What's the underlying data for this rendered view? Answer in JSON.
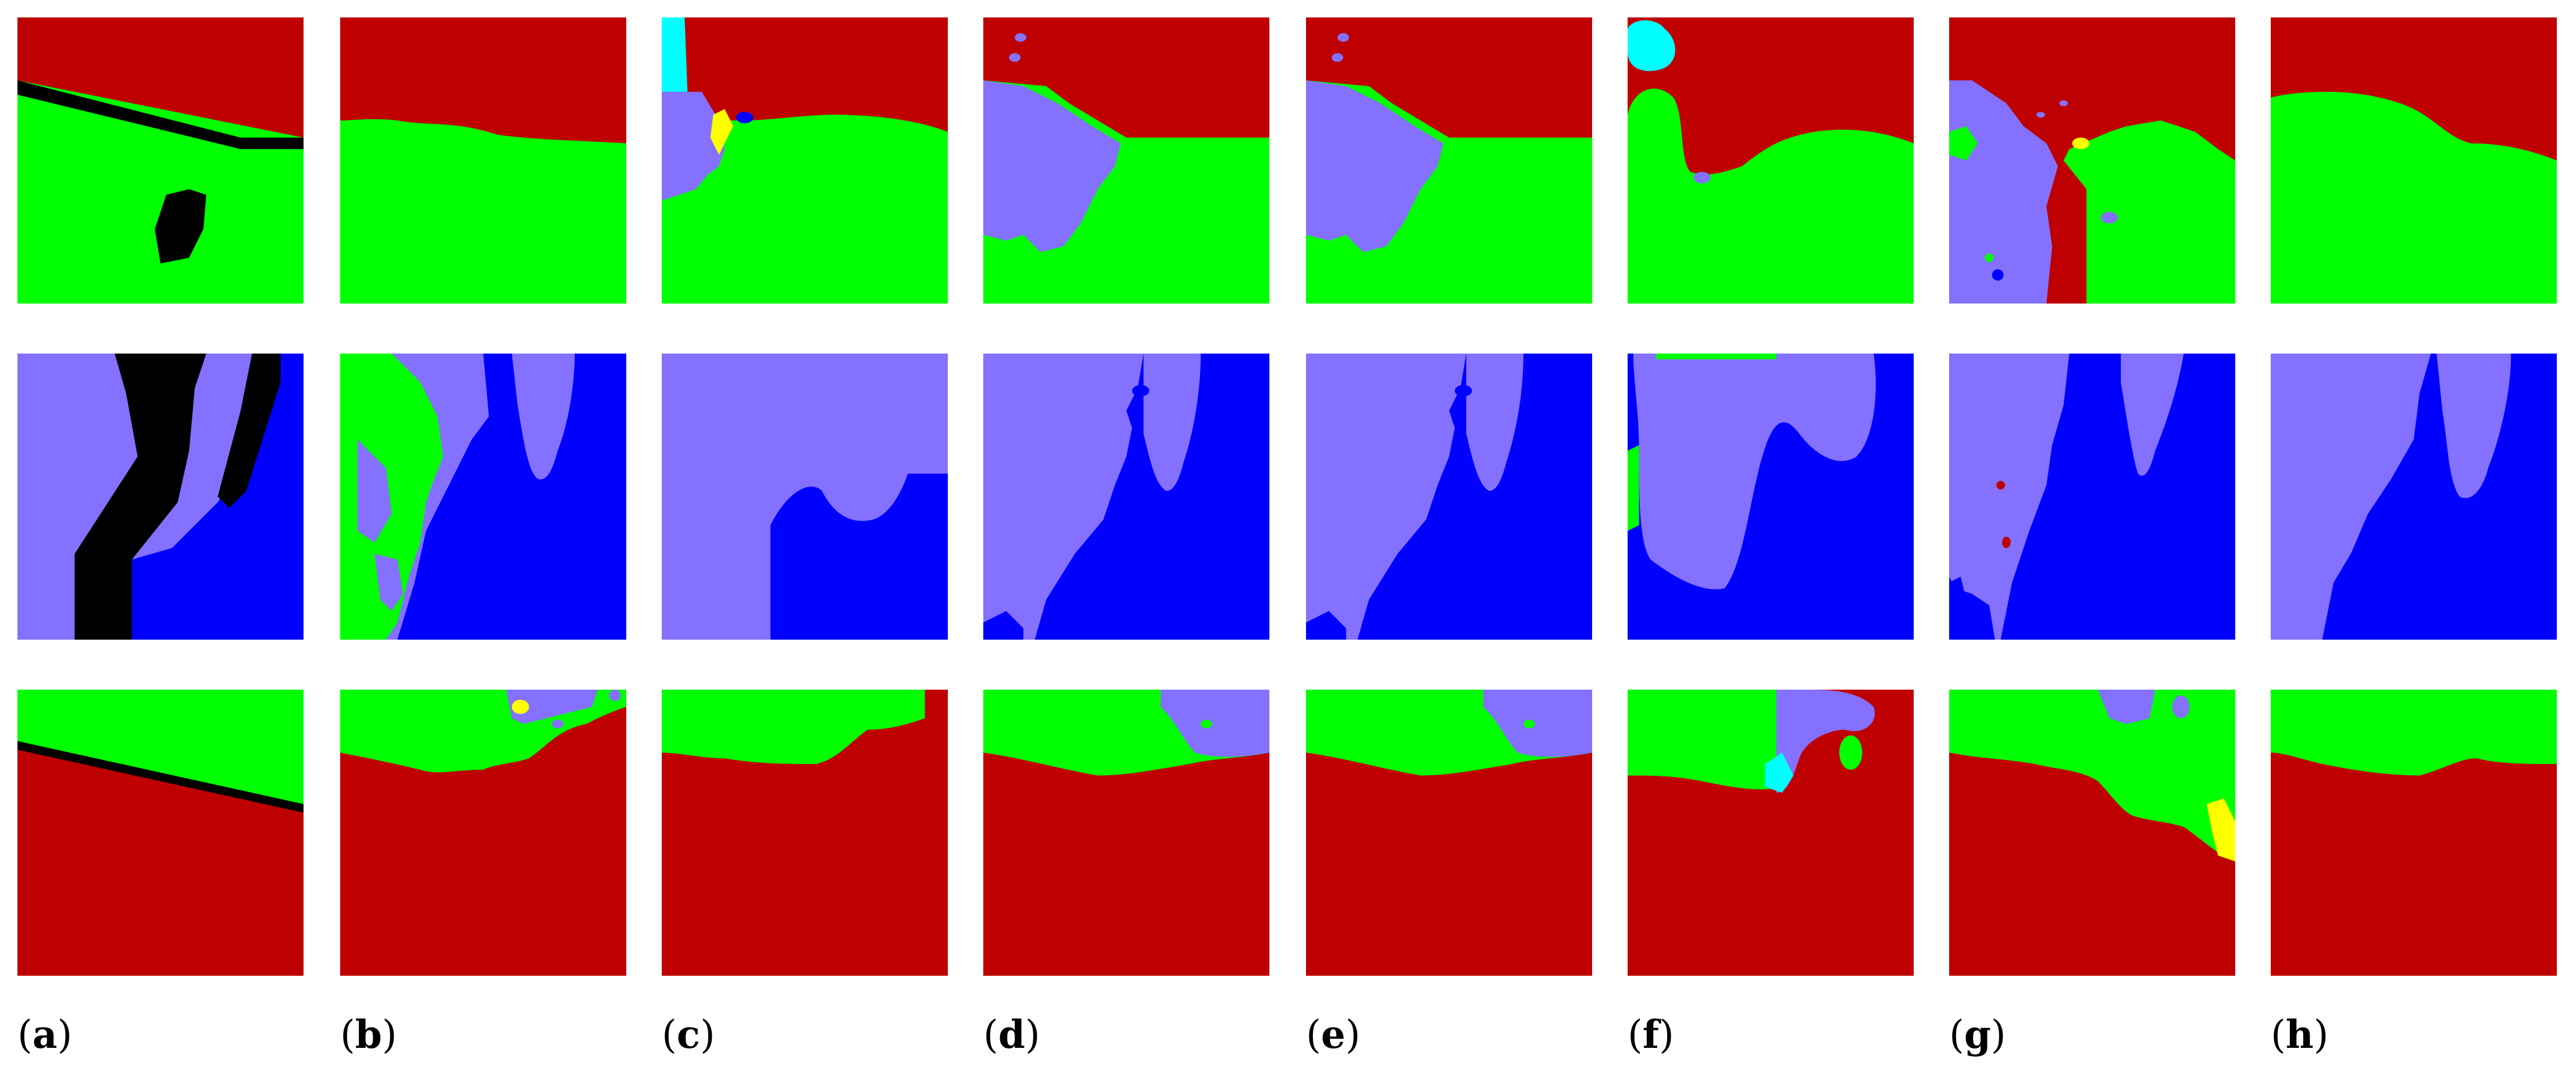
{
  "colors": {
    "red": "#BF0000",
    "green": "#00FF00",
    "blue": "#0000FF",
    "lavender": "#8471FF",
    "yellow": "#FFFF00",
    "cyan": "#00FFFF",
    "black": "#000000"
  },
  "captions": [
    {
      "open": "(",
      "letter": "a",
      "close": ")"
    },
    {
      "open": "(",
      "letter": "b",
      "close": ")"
    },
    {
      "open": "(",
      "letter": "c",
      "close": ")"
    },
    {
      "open": "(",
      "letter": "d",
      "close": ")"
    },
    {
      "open": "(",
      "letter": "e",
      "close": ")"
    },
    {
      "open": "(",
      "letter": "f",
      "close": ")"
    },
    {
      "open": "(",
      "letter": "g",
      "close": ")"
    },
    {
      "open": "(",
      "letter": "h",
      "close": ")"
    }
  ]
}
